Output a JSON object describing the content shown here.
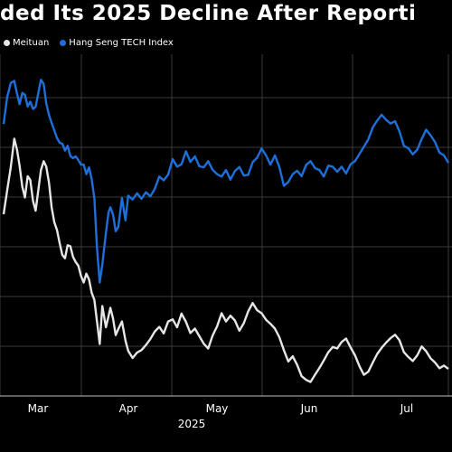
{
  "chart_data": {
    "type": "line",
    "title": "ded Its 2025 Decline After Reporti",
    "legend_position": "top-left",
    "grid": true,
    "x_ticks": [
      "Mar",
      "Apr",
      "May",
      "Jun",
      "Jul"
    ],
    "x_year_label": "2025",
    "x_range": [
      0,
      1
    ],
    "y_range": [
      0,
      1
    ],
    "series": [
      {
        "name": "Meituan",
        "color": "#e6e6e6",
        "x": [
          0.0,
          0.008,
          0.016,
          0.024,
          0.03,
          0.036,
          0.042,
          0.048,
          0.054,
          0.06,
          0.066,
          0.072,
          0.078,
          0.084,
          0.09,
          0.096,
          0.102,
          0.108,
          0.114,
          0.12,
          0.126,
          0.132,
          0.138,
          0.144,
          0.15,
          0.156,
          0.162,
          0.168,
          0.174,
          0.18,
          0.186,
          0.192,
          0.198,
          0.204,
          0.21,
          0.216,
          0.222,
          0.23,
          0.236,
          0.24,
          0.246,
          0.252,
          0.258,
          0.266,
          0.274,
          0.28,
          0.29,
          0.3,
          0.31,
          0.32,
          0.33,
          0.34,
          0.35,
          0.36,
          0.37,
          0.38,
          0.39,
          0.4,
          0.41,
          0.42,
          0.43,
          0.44,
          0.45,
          0.46,
          0.47,
          0.48,
          0.49,
          0.5,
          0.51,
          0.52,
          0.53,
          0.54,
          0.55,
          0.56,
          0.57,
          0.58,
          0.59,
          0.6,
          0.61,
          0.62,
          0.63,
          0.64,
          0.65,
          0.66,
          0.67,
          0.68,
          0.69,
          0.7,
          0.71,
          0.72,
          0.73,
          0.74,
          0.75,
          0.76,
          0.77,
          0.78,
          0.79,
          0.8,
          0.81,
          0.82,
          0.83,
          0.84,
          0.85,
          0.86,
          0.87,
          0.88,
          0.89,
          0.9,
          0.91,
          0.92,
          0.93,
          0.94,
          0.95,
          0.96,
          0.97,
          0.98,
          0.99,
          1.0
        ],
        "values": [
          53.2,
          60.1,
          66.9,
          75.3,
          72.1,
          67.3,
          61.2,
          58.1,
          64.3,
          63.2,
          57.1,
          54.2,
          60.3,
          66.1,
          68.7,
          67.1,
          62.4,
          55.2,
          50.8,
          48.6,
          44.7,
          41.3,
          40.3,
          44.1,
          43.8,
          40.7,
          39.2,
          38.1,
          35.1,
          33.2,
          35.8,
          34.1,
          30.2,
          28.1,
          21.8,
          15.2,
          26.3,
          20.1,
          23.4,
          25.8,
          22.7,
          17.8,
          19.6,
          21.8,
          16.2,
          13.2,
          11.1,
          12.7,
          13.4,
          14.9,
          16.7,
          18.9,
          20.2,
          18.3,
          21.8,
          22.4,
          20.1,
          24.1,
          21.7,
          18.4,
          19.7,
          17.5,
          15.3,
          13.9,
          17.7,
          20.4,
          24.2,
          21.8,
          23.5,
          22.1,
          19.1,
          21.3,
          24.8,
          27.2,
          25.1,
          24.2,
          22.3,
          21.1,
          19.7,
          17.2,
          13.4,
          10.1,
          11.6,
          9.1,
          5.8,
          4.7,
          4.1,
          6.2,
          8.2,
          10.4,
          12.8,
          14.3,
          13.9,
          15.8,
          16.8,
          14.2,
          11.9,
          8.7,
          6.2,
          7.1,
          9.8,
          12.3,
          14.1,
          15.6,
          16.9,
          17.9,
          16.3,
          12.8,
          11.4,
          10.2,
          11.9,
          14.5,
          13.1,
          11.0,
          9.8,
          8.1,
          8.9,
          7.9
        ]
      },
      {
        "name": "Hang Seng TECH Index",
        "color": "#1e6fd9",
        "x": [
          0.0,
          0.008,
          0.016,
          0.024,
          0.03,
          0.036,
          0.042,
          0.048,
          0.054,
          0.06,
          0.066,
          0.072,
          0.078,
          0.084,
          0.09,
          0.096,
          0.102,
          0.108,
          0.114,
          0.12,
          0.126,
          0.132,
          0.138,
          0.144,
          0.15,
          0.156,
          0.162,
          0.168,
          0.174,
          0.18,
          0.186,
          0.192,
          0.198,
          0.204,
          0.21,
          0.216,
          0.222,
          0.23,
          0.236,
          0.24,
          0.246,
          0.252,
          0.258,
          0.266,
          0.274,
          0.28,
          0.29,
          0.3,
          0.31,
          0.32,
          0.33,
          0.34,
          0.35,
          0.36,
          0.37,
          0.38,
          0.39,
          0.4,
          0.41,
          0.42,
          0.43,
          0.44,
          0.45,
          0.46,
          0.47,
          0.48,
          0.49,
          0.5,
          0.51,
          0.52,
          0.53,
          0.54,
          0.55,
          0.56,
          0.57,
          0.58,
          0.59,
          0.6,
          0.61,
          0.62,
          0.63,
          0.64,
          0.65,
          0.66,
          0.67,
          0.68,
          0.69,
          0.7,
          0.71,
          0.72,
          0.73,
          0.74,
          0.75,
          0.76,
          0.77,
          0.78,
          0.79,
          0.8,
          0.81,
          0.82,
          0.83,
          0.84,
          0.85,
          0.86,
          0.87,
          0.88,
          0.89,
          0.9,
          0.91,
          0.92,
          0.93,
          0.94,
          0.95,
          0.96,
          0.97,
          0.98,
          0.99,
          1.0
        ],
        "values": [
          79.6,
          87.4,
          91.6,
          92.2,
          88.5,
          85.4,
          88.7,
          88.1,
          84.7,
          86.1,
          84.0,
          84.6,
          88.7,
          92.5,
          91.3,
          85.6,
          82.2,
          79.9,
          77.7,
          75.5,
          74.1,
          73.8,
          71.8,
          73.2,
          70.2,
          69.6,
          70.1,
          69.0,
          67.7,
          67.7,
          64.9,
          66.9,
          63.4,
          57.8,
          43.3,
          33.2,
          38.5,
          47.8,
          53.8,
          55.2,
          53.1,
          48.2,
          49.5,
          57.9,
          51.4,
          58.6,
          57.5,
          59.3,
          57.7,
          59.6,
          58.4,
          60.7,
          64.2,
          63.1,
          64.8,
          69.3,
          67.1,
          67.8,
          71.6,
          68.5,
          70.1,
          67.2,
          66.9,
          68.7,
          66.2,
          64.9,
          64.2,
          66.1,
          63.3,
          65.8,
          67.0,
          64.5,
          64.7,
          68.4,
          69.7,
          72.4,
          70.4,
          67.7,
          70.4,
          67.0,
          61.5,
          62.6,
          64.9,
          65.9,
          64.3,
          67.6,
          68.7,
          66.7,
          66.1,
          64.2,
          67.4,
          67.1,
          65.6,
          67.1,
          65.1,
          67.8,
          68.7,
          70.8,
          72.9,
          75.1,
          78.6,
          80.6,
          82.3,
          80.8,
          79.7,
          80.4,
          77.4,
          73.2,
          72.5,
          70.7,
          72.1,
          75.2,
          77.9,
          76.3,
          74.3,
          71.2,
          70.4,
          68.2
        ]
      }
    ]
  }
}
